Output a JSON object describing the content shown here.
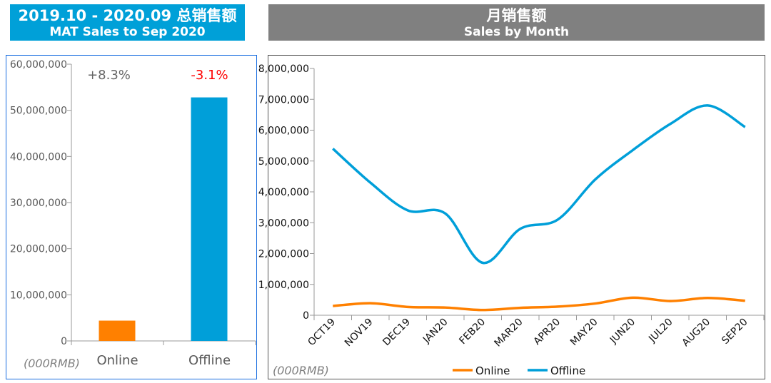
{
  "left_title": {
    "line1": "2019.10 - 2020.09 总销售额",
    "line2": "MAT Sales to Sep 2020"
  },
  "right_title": {
    "line1": "月销售额",
    "line2": "Sales by Month"
  },
  "colors": {
    "online": "#ff8000",
    "offline": "#009fd9",
    "negative": "#ff0000",
    "title_blue": "#00a0d8",
    "title_gray": "#808080"
  },
  "chart_data": [
    {
      "type": "bar",
      "title": "MAT Sales to Sep 2020",
      "categories": [
        "Online",
        "Offline"
      ],
      "values": [
        4400000,
        52800000
      ],
      "annotations": [
        "+8.3%",
        "-3.1%"
      ],
      "ylabel": "(000RMB)",
      "ylim": [
        0,
        60000000
      ],
      "yticks": [
        "0",
        "10,000,000",
        "20,000,000",
        "30,000,000",
        "40,000,000",
        "50,000,000",
        "60,000,000"
      ]
    },
    {
      "type": "line",
      "title": "Sales by Month",
      "ylabel": "(000RMB)",
      "ylim": [
        0,
        8000000
      ],
      "categories": [
        "OCT19",
        "NOV19",
        "DEC19",
        "JAN20",
        "FEB20",
        "MAR20",
        "APR20",
        "MAY20",
        "JUN20",
        "JUL20",
        "AUG20",
        "SEP20"
      ],
      "yticks": [
        "0",
        "1,000,000",
        "2,000,000",
        "3,000,000",
        "4,000,000",
        "5,000,000",
        "6,000,000",
        "7,000,000",
        "8,000,000"
      ],
      "legend": "bottom",
      "series": [
        {
          "name": "Online",
          "values": [
            300000,
            390000,
            270000,
            250000,
            170000,
            240000,
            280000,
            380000,
            570000,
            460000,
            560000,
            470000
          ]
        },
        {
          "name": "Offline",
          "values": [
            5400000,
            4300000,
            3400000,
            3300000,
            1700000,
            2800000,
            3100000,
            4400000,
            5350000,
            6200000,
            6800000,
            6100000
          ]
        }
      ]
    }
  ]
}
